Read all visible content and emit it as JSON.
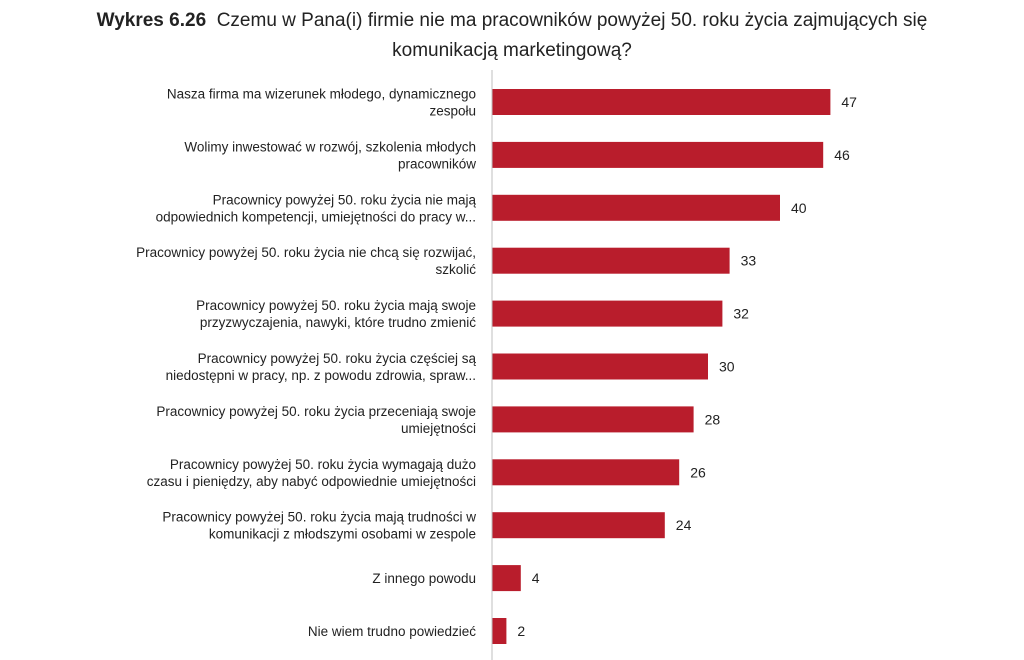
{
  "chart_title": {
    "label": "Wykres 6.26",
    "line1": "Czemu w Pana(i) firmie nie ma pracowników powyżej 50. roku życia zajmujących się",
    "line2": "komunikacją marketingową?"
  },
  "colors": {
    "bar": "#b91d2c",
    "axis": "#bfbfbf",
    "text": "#222222"
  },
  "chart_data": {
    "type": "bar",
    "orientation": "horizontal",
    "title": "Wykres 6.26 Czemu w Pana(i) firmie nie ma pracowników powyżej 50. roku życia zajmujących się komunikacją marketingową?",
    "xlabel": "",
    "ylabel": "",
    "grid": false,
    "legend": "none",
    "xlim": [
      0,
      50
    ],
    "categories": [
      [
        "Nasza firma ma wizerunek młodego, dynamicznego",
        "zespołu"
      ],
      [
        "Wolimy inwestować w rozwój, szkolenia młodych",
        "pracowników"
      ],
      [
        "Pracownicy powyżej 50. roku życia nie mają",
        "odpowiednich kompetencji, umiejętności do pracy w..."
      ],
      [
        "Pracownicy powyżej 50. roku życia nie chcą się rozwijać,",
        "szkolić"
      ],
      [
        "Pracownicy powyżej 50. roku życia mają swoje",
        "przyzwyczajenia, nawyki, które trudno zmienić"
      ],
      [
        "Pracownicy powyżej 50. roku życia częściej są",
        "niedostępni w pracy, np. z powodu zdrowia, spraw..."
      ],
      [
        "Pracownicy powyżej 50. roku życia przeceniają swoje",
        "umiejętności"
      ],
      [
        "Pracownicy powyżej 50. roku życia wymagają dużo",
        "czasu i pieniędzy, aby nabyć odpowiednie umiejętności"
      ],
      [
        "Pracownicy powyżej 50. roku życia mają trudności w",
        "komunikacji z młodszymi osobami w zespole"
      ],
      [
        "Z innego powodu"
      ],
      [
        "Nie wiem trudno powiedzieć"
      ]
    ],
    "values": [
      47,
      46,
      40,
      33,
      32,
      30,
      28,
      26,
      24,
      4,
      2
    ]
  }
}
